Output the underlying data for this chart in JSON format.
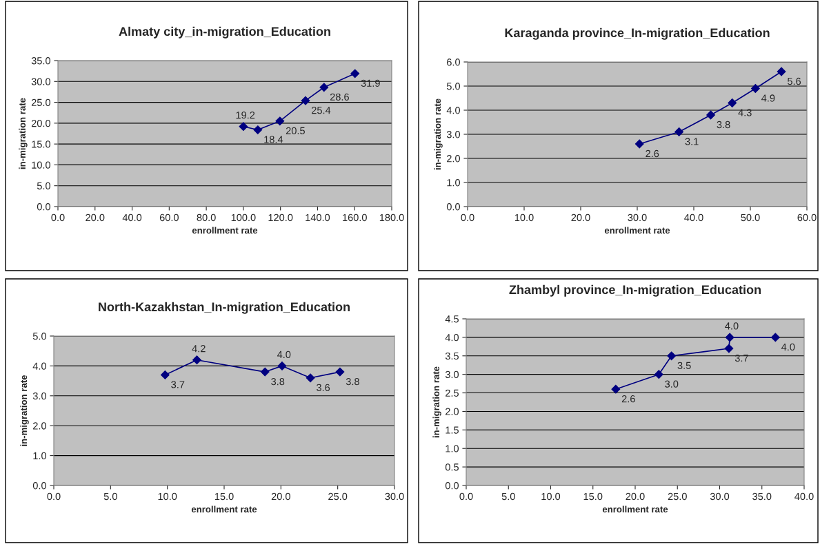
{
  "chart_data": [
    {
      "type": "line",
      "title": "Almaty city_in-migration_Education",
      "xlabel": "enrollment rate",
      "ylabel": "in-migration rate",
      "marker": "diamond",
      "grid": "y",
      "series": [
        {
          "color": "#000080",
          "x": [
            100.0,
            107.8,
            119.7,
            133.5,
            143.5,
            160.2
          ],
          "values": [
            19.2,
            18.4,
            20.5,
            25.4,
            28.6,
            31.9
          ],
          "value_labels": [
            "19.2",
            "18.4",
            "20.5",
            "25.4",
            "28.6",
            "31.9"
          ]
        }
      ],
      "xlim": [
        0,
        180
      ],
      "xticks": [
        {
          "value": 0,
          "label": "0.0"
        },
        {
          "value": 20,
          "label": "20.0"
        },
        {
          "value": 40,
          "label": "40.0"
        },
        {
          "value": 60,
          "label": "60.0"
        },
        {
          "value": 80,
          "label": "80.0"
        },
        {
          "value": 100,
          "label": "100.0"
        },
        {
          "value": 120,
          "label": "120.0"
        },
        {
          "value": 140,
          "label": "140.0"
        },
        {
          "value": 160,
          "label": "160.0"
        },
        {
          "value": 180,
          "label": "180.0"
        }
      ],
      "ylim": [
        0,
        35
      ],
      "yticks": [
        {
          "value": 0,
          "label": "0.0"
        },
        {
          "value": 5,
          "label": "5.0"
        },
        {
          "value": 10,
          "label": "10.0"
        },
        {
          "value": 15,
          "label": "15.0"
        },
        {
          "value": 20,
          "label": "20.0"
        },
        {
          "value": 25,
          "label": "25.0"
        },
        {
          "value": 30,
          "label": "30.0"
        },
        {
          "value": 35,
          "label": "35.0"
        }
      ]
    },
    {
      "type": "line",
      "title": "Karaganda province_In-migration_Education",
      "xlabel": "enrollment rate",
      "ylabel": "in-migration rate",
      "marker": "diamond",
      "grid": "y",
      "series": [
        {
          "color": "#000080",
          "x": [
            30.4,
            37.4,
            43.0,
            46.8,
            50.9,
            55.5
          ],
          "values": [
            2.6,
            3.1,
            3.8,
            4.3,
            4.9,
            5.6
          ],
          "value_labels": [
            "2.6",
            "3.1",
            "3.8",
            "4.3",
            "4.9",
            "5.6"
          ]
        }
      ],
      "xlim": [
        0,
        60
      ],
      "xticks": [
        {
          "value": 0,
          "label": "0.0"
        },
        {
          "value": 10,
          "label": "10.0"
        },
        {
          "value": 20,
          "label": "20.0"
        },
        {
          "value": 30,
          "label": "30.0"
        },
        {
          "value": 40,
          "label": "40.0"
        },
        {
          "value": 50,
          "label": "50.0"
        },
        {
          "value": 60,
          "label": "60.0"
        }
      ],
      "ylim": [
        0,
        6
      ],
      "yticks": [
        {
          "value": 0,
          "label": "0.0"
        },
        {
          "value": 1,
          "label": "1.0"
        },
        {
          "value": 2,
          "label": "2.0"
        },
        {
          "value": 3,
          "label": "3.0"
        },
        {
          "value": 4,
          "label": "4.0"
        },
        {
          "value": 5,
          "label": "5.0"
        },
        {
          "value": 6,
          "label": "6.0"
        }
      ]
    },
    {
      "type": "line",
      "title": "North-Kazakhstan_In-migration_Education",
      "xlabel": "enrollment rate",
      "ylabel": "in-migration rate",
      "marker": "diamond",
      "grid": "y",
      "series": [
        {
          "color": "#000080",
          "x": [
            9.8,
            12.6,
            18.6,
            20.1,
            22.6,
            25.2
          ],
          "values": [
            3.7,
            4.2,
            3.8,
            4.0,
            3.6,
            3.8
          ],
          "value_labels": [
            "3.7",
            "4.2",
            "3.8",
            "4.0",
            "3.6",
            "3.8"
          ]
        }
      ],
      "xlim": [
        0,
        30
      ],
      "xticks": [
        {
          "value": 0,
          "label": "0.0"
        },
        {
          "value": 5,
          "label": "5.0"
        },
        {
          "value": 10,
          "label": "10.0"
        },
        {
          "value": 15,
          "label": "15.0"
        },
        {
          "value": 20,
          "label": "20.0"
        },
        {
          "value": 25,
          "label": "25.0"
        },
        {
          "value": 30,
          "label": "30.0"
        }
      ],
      "ylim": [
        0,
        5
      ],
      "yticks": [
        {
          "value": 0,
          "label": "0.0"
        },
        {
          "value": 1,
          "label": "1.0"
        },
        {
          "value": 2,
          "label": "2.0"
        },
        {
          "value": 3,
          "label": "3.0"
        },
        {
          "value": 4,
          "label": "4.0"
        },
        {
          "value": 5,
          "label": "5.0"
        }
      ]
    },
    {
      "type": "line",
      "title": "Zhambyl province_In-migration_Education",
      "xlabel": "enrollment rate",
      "ylabel": "in-migration rate",
      "marker": "diamond",
      "grid": "y",
      "series": [
        {
          "color": "#000080",
          "x": [
            17.7,
            22.8,
            24.3,
            31.1,
            31.2,
            36.6
          ],
          "values": [
            2.6,
            3.0,
            3.5,
            3.7,
            4.0,
            4.0
          ],
          "value_labels": [
            "2.6",
            "3.0",
            "3.5",
            "3.7",
            "4.0",
            "4.0"
          ]
        }
      ],
      "xlim": [
        0,
        40
      ],
      "xticks": [
        {
          "value": 0,
          "label": "0.0"
        },
        {
          "value": 5,
          "label": "5.0"
        },
        {
          "value": 10,
          "label": "10.0"
        },
        {
          "value": 15,
          "label": "15.0"
        },
        {
          "value": 20,
          "label": "20.0"
        },
        {
          "value": 25,
          "label": "25.0"
        },
        {
          "value": 30,
          "label": "30.0"
        },
        {
          "value": 35,
          "label": "35.0"
        },
        {
          "value": 40,
          "label": "40.0"
        }
      ],
      "ylim": [
        0,
        4.5
      ],
      "yticks": [
        {
          "value": 0,
          "label": "0.0"
        },
        {
          "value": 0.5,
          "label": "0.5"
        },
        {
          "value": 1,
          "label": "1.0"
        },
        {
          "value": 1.5,
          "label": "1.5"
        },
        {
          "value": 2,
          "label": "2.0"
        },
        {
          "value": 2.5,
          "label": "2.5"
        },
        {
          "value": 3,
          "label": "3.0"
        },
        {
          "value": 3.5,
          "label": "3.5"
        },
        {
          "value": 4,
          "label": "4.0"
        },
        {
          "value": 4.5,
          "label": "4.5"
        }
      ]
    }
  ]
}
